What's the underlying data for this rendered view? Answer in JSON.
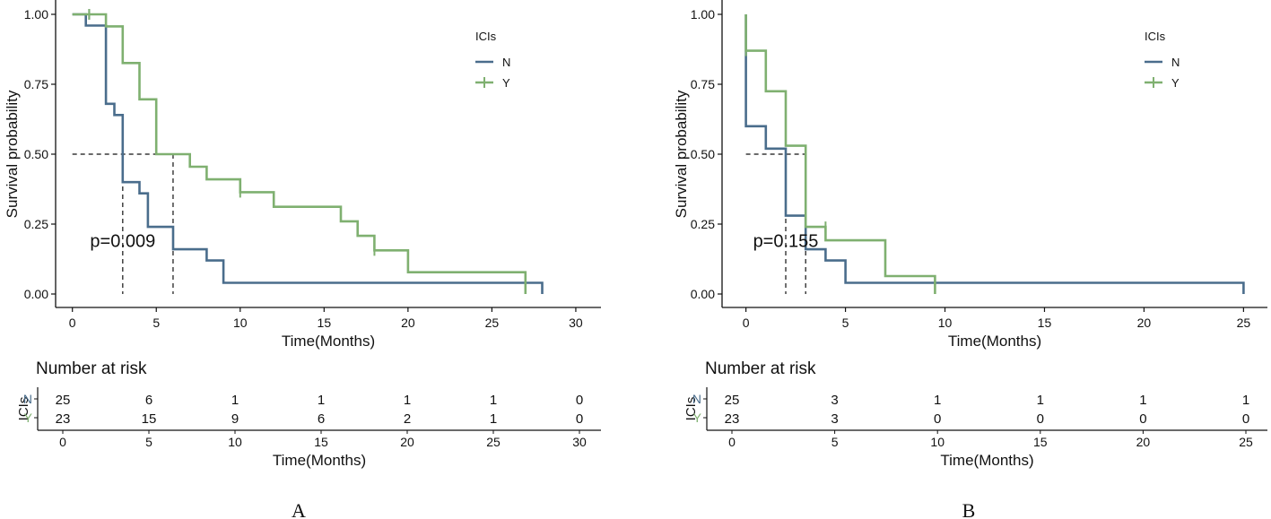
{
  "figure": {
    "panel_labels": [
      "A",
      "B"
    ]
  },
  "colors": {
    "N": "#4a6d8c",
    "Y": "#7fb070",
    "axis": "#111111",
    "median": "#111111"
  },
  "chart_data": [
    {
      "type": "line",
      "subtype": "kaplan-meier",
      "panel": "A",
      "xlabel": "Time(Months)",
      "ylabel": "Survival probability",
      "xlim": [
        -1,
        31.5
      ],
      "ylim": [
        0,
        1
      ],
      "xticks": [
        0,
        5,
        10,
        15,
        20,
        25,
        30
      ],
      "yticks": [
        0,
        0.25,
        0.5,
        0.75,
        1
      ],
      "ytick_labels": [
        "0.00",
        "0.25",
        "0.50",
        "0.75",
        "1.00"
      ],
      "legend": {
        "title": "ICIs",
        "position": "top-right",
        "entries": [
          "N",
          "Y"
        ]
      },
      "pvalue": {
        "text": "p=0.009",
        "x": 3,
        "y": 0.19
      },
      "medians": [
        {
          "series": "N",
          "x": 3,
          "y": 0.5
        },
        {
          "series": "Y",
          "x": 6,
          "y": 0.5
        }
      ],
      "series": [
        {
          "name": "N",
          "steps": [
            [
              0,
              1
            ],
            [
              0.8,
              1
            ],
            [
              0.8,
              0.96
            ],
            [
              2,
              0.96
            ],
            [
              2,
              0.68
            ],
            [
              2.5,
              0.68
            ],
            [
              2.5,
              0.64
            ],
            [
              3,
              0.64
            ],
            [
              3,
              0.4
            ],
            [
              4,
              0.4
            ],
            [
              4,
              0.36
            ],
            [
              4.5,
              0.36
            ],
            [
              4.5,
              0.24
            ],
            [
              6,
              0.24
            ],
            [
              6,
              0.16
            ],
            [
              8,
              0.16
            ],
            [
              8,
              0.12
            ],
            [
              9,
              0.12
            ],
            [
              9,
              0.04
            ],
            [
              28,
              0.04
            ],
            [
              28,
              0
            ]
          ],
          "censors": [
            [
              1,
              1
            ]
          ]
        },
        {
          "name": "Y",
          "steps": [
            [
              0,
              1
            ],
            [
              2,
              1
            ],
            [
              2,
              0.957
            ],
            [
              3,
              0.957
            ],
            [
              3,
              0.826
            ],
            [
              4,
              0.826
            ],
            [
              4,
              0.696
            ],
            [
              5,
              0.696
            ],
            [
              5,
              0.5
            ],
            [
              7,
              0.5
            ],
            [
              7,
              0.455
            ],
            [
              8,
              0.455
            ],
            [
              8,
              0.41
            ],
            [
              10,
              0.41
            ],
            [
              10,
              0.364
            ],
            [
              12,
              0.364
            ],
            [
              12,
              0.312
            ],
            [
              16,
              0.312
            ],
            [
              16,
              0.26
            ],
            [
              17,
              0.26
            ],
            [
              17,
              0.208
            ],
            [
              18,
              0.208
            ],
            [
              18,
              0.156
            ],
            [
              20,
              0.156
            ],
            [
              20,
              0.078
            ],
            [
              27,
              0.078
            ],
            [
              27,
              0
            ]
          ],
          "censors": [
            [
              1,
              1
            ],
            [
              10,
              0.364
            ],
            [
              18,
              0.156
            ]
          ]
        }
      ],
      "risk_table": {
        "title": "Number at risk",
        "strata_label": "ICIs",
        "xlabel": "Time(Months)",
        "times": [
          0,
          5,
          10,
          15,
          20,
          25,
          30
        ],
        "rows": [
          {
            "name": "N",
            "counts": [
              "25",
              "6",
              "1",
              "1",
              "1",
              "1",
              "0"
            ]
          },
          {
            "name": "Y",
            "counts": [
              "23",
              "15",
              "9",
              "6",
              "2",
              "1",
              "0"
            ]
          }
        ]
      }
    },
    {
      "type": "line",
      "subtype": "kaplan-meier",
      "panel": "B",
      "xlabel": "Time(Months)",
      "ylabel": "Survival probability",
      "xlim": [
        -1.2,
        26.2
      ],
      "ylim": [
        0,
        1
      ],
      "xticks": [
        0,
        5,
        10,
        15,
        20,
        25
      ],
      "yticks": [
        0,
        0.25,
        0.5,
        0.75,
        1
      ],
      "ytick_labels": [
        "0.00",
        "0.25",
        "0.50",
        "0.75",
        "1.00"
      ],
      "legend": {
        "title": "ICIs",
        "position": "top-right",
        "entries": [
          "N",
          "Y"
        ]
      },
      "pvalue": {
        "text": "p=0.155",
        "x": 2,
        "y": 0.19
      },
      "medians": [
        {
          "series": "N",
          "x": 2,
          "y": 0.5
        },
        {
          "series": "Y",
          "x": 3,
          "y": 0.5
        }
      ],
      "series": [
        {
          "name": "N",
          "steps": [
            [
              0,
              1
            ],
            [
              0,
              0.6
            ],
            [
              1,
              0.6
            ],
            [
              1,
              0.52
            ],
            [
              2,
              0.52
            ],
            [
              2,
              0.28
            ],
            [
              3,
              0.28
            ],
            [
              3,
              0.16
            ],
            [
              4,
              0.16
            ],
            [
              4,
              0.12
            ],
            [
              5,
              0.12
            ],
            [
              5,
              0.04
            ],
            [
              25,
              0.04
            ],
            [
              25,
              0
            ]
          ],
          "censors": []
        },
        {
          "name": "Y",
          "steps": [
            [
              0,
              1
            ],
            [
              0,
              0.87
            ],
            [
              1,
              0.87
            ],
            [
              1,
              0.725
            ],
            [
              2,
              0.725
            ],
            [
              2,
              0.53
            ],
            [
              3,
              0.53
            ],
            [
              3,
              0.24
            ],
            [
              4,
              0.24
            ],
            [
              4,
              0.192
            ],
            [
              7,
              0.192
            ],
            [
              7,
              0.064
            ],
            [
              9.5,
              0.064
            ],
            [
              9.5,
              0
            ]
          ],
          "censors": [
            [
              0,
              0.87
            ],
            [
              4,
              0.24
            ]
          ]
        }
      ],
      "risk_table": {
        "title": "Number at risk",
        "strata_label": "ICIs",
        "xlabel": "Time(Months)",
        "times": [
          0,
          5,
          10,
          15,
          20,
          25
        ],
        "rows": [
          {
            "name": "N",
            "counts": [
              "25",
              "3",
              "1",
              "1",
              "1",
              "1"
            ]
          },
          {
            "name": "Y",
            "counts": [
              "23",
              "3",
              "0",
              "0",
              "0",
              "0"
            ]
          }
        ]
      }
    }
  ]
}
